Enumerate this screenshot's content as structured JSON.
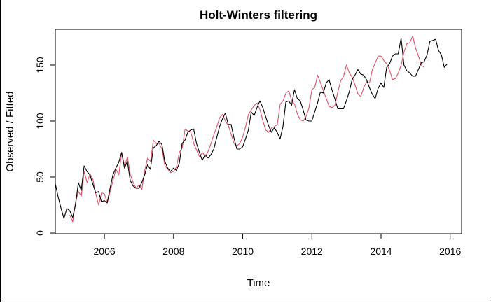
{
  "chart_data": {
    "type": "line",
    "title": "Holt-Winters filtering",
    "xlabel": "Time",
    "ylabel": "Observed / Fitted",
    "xlim": [
      2004.58,
      2016.33
    ],
    "ylim": [
      0,
      180
    ],
    "x_ticks": [
      2006,
      2008,
      2010,
      2012,
      2014,
      2016
    ],
    "y_ticks": [
      0,
      50,
      100,
      150
    ],
    "grid": false,
    "legend": "none",
    "series": [
      {
        "color": "#000000",
        "x_start": 2004.58,
        "x_step": 0.0833333,
        "values": [
          44,
          32,
          22,
          13,
          22,
          20,
          14,
          25,
          45,
          38,
          60,
          55,
          52,
          44,
          36,
          37,
          28,
          29,
          27,
          40,
          52,
          58,
          63,
          72,
          58,
          64,
          47,
          42,
          40,
          40,
          45,
          52,
          61,
          57,
          76,
          78,
          82,
          79,
          64,
          58,
          55,
          58,
          56,
          62,
          80,
          83,
          90,
          92,
          93,
          80,
          72,
          65,
          70,
          67,
          70,
          75,
          85,
          95,
          102,
          107,
          97,
          97,
          85,
          75,
          75,
          77,
          84,
          92,
          108,
          105,
          112,
          118,
          112,
          104,
          96,
          90,
          94,
          90,
          84,
          95,
          117,
          118,
          114,
          128,
          120,
          118,
          110,
          101,
          100,
          100,
          108,
          116,
          126,
          125,
          134,
          137,
          128,
          120,
          111,
          111,
          111,
          118,
          126,
          137,
          141,
          146,
          142,
          141,
          137,
          130,
          124,
          120,
          129,
          134,
          130,
          148,
          151,
          158,
          160,
          160,
          174,
          150,
          145,
          143,
          140,
          140,
          146,
          152,
          153,
          159,
          171,
          172,
          173,
          163,
          159,
          148,
          151
        ]
      },
      {
        "color": "#df536b",
        "x_start": 2005.0,
        "x_step": 0.0833333,
        "values": [
          16,
          10,
          28,
          37,
          33,
          55,
          45,
          53,
          48,
          35,
          25,
          36,
          35,
          27,
          37,
          47,
          57,
          52,
          72,
          60,
          68,
          52,
          45,
          40,
          43,
          39,
          56,
          67,
          64,
          83,
          80,
          80,
          75,
          60,
          57,
          54,
          55,
          59,
          72,
          76,
          93,
          91,
          90,
          80,
          74,
          68,
          72,
          68,
          73,
          80,
          88,
          95,
          103,
          106,
          100,
          96,
          88,
          80,
          78,
          80,
          86,
          95,
          106,
          110,
          114,
          116,
          110,
          100,
          92,
          90,
          94,
          95,
          97,
          115,
          118,
          125,
          127,
          118,
          115,
          106,
          101,
          100,
          104,
          112,
          128,
          130,
          141,
          134,
          127,
          120,
          113,
          112,
          114,
          126,
          136,
          140,
          150,
          143,
          139,
          132,
          124,
          122,
          130,
          135,
          134,
          146,
          152,
          158,
          158,
          154,
          151,
          145,
          137,
          138,
          143,
          150,
          162,
          169,
          170,
          176,
          165,
          158,
          150,
          148
        ]
      }
    ]
  }
}
